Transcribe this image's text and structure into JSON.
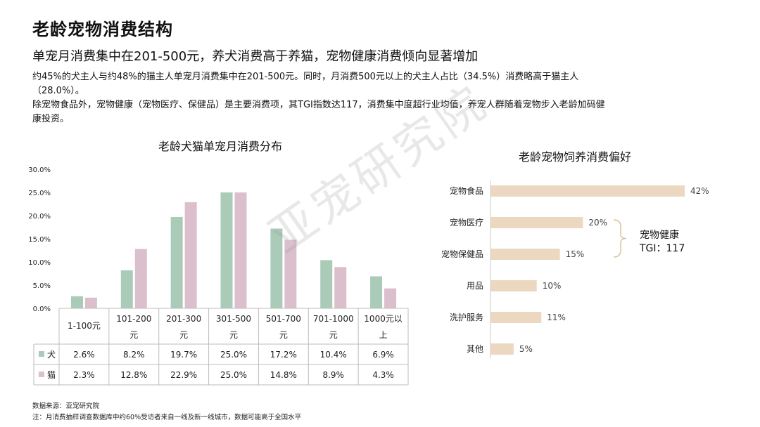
{
  "page": {
    "title": "老龄宠物消费结构",
    "subtitle": "单宠月消费集中在201-500元，养犬消费高于养猫，宠物健康消费倾向显著增加",
    "para1_line1": "约45%的犬主人与约48%的猫主人单宠月消费集中在201-500元。同时，月消费500元以上的犬主人占比（34.5%）消费略高于猫主人",
    "para1_line2": "（28.0%）。",
    "para2_line1": "除宠物食品外，宠物健康（宠物医疗、保健品）是主要消费项，其TGI指数达117，消费集中度超行业均值，养宠人群随着宠物步入老龄加码健",
    "para2_line2": "康投资。",
    "watermark": "亚宠研究院",
    "source": "数据来源：亚宠研究院",
    "note": "注：月消费抽样调查数据库中约60%受访者来自一线及新一线城市，数据可能高于全国水平"
  },
  "chart_data": [
    {
      "type": "bar",
      "title": "老龄犬猫单宠月消费分布",
      "categories": [
        [
          "1-100元"
        ],
        [
          "101-200",
          "元"
        ],
        [
          "201-300",
          "元"
        ],
        [
          "301-500",
          "元"
        ],
        [
          "501-700",
          "元"
        ],
        [
          "701-1000",
          "元"
        ],
        [
          "1000元以",
          "上"
        ]
      ],
      "series": [
        {
          "name": "犬",
          "color": "#a9cbb8",
          "values": [
            2.6,
            8.2,
            19.7,
            25.0,
            17.2,
            10.4,
            6.9
          ],
          "labels": [
            "2.6%",
            "8.2%",
            "19.7%",
            "25.0%",
            "17.2%",
            "10.4%",
            "6.9%"
          ]
        },
        {
          "name": "猫",
          "color": "#dcbfcd",
          "values": [
            2.3,
            12.8,
            22.9,
            25.0,
            14.8,
            8.9,
            4.3
          ],
          "labels": [
            "2.3%",
            "12.8%",
            "22.9%",
            "25.0%",
            "14.8%",
            "8.9%",
            "4.3%"
          ]
        }
      ],
      "ylim": [
        0,
        30
      ],
      "yticks": [
        "0.0%",
        "5.0%",
        "10.0%",
        "15.0%",
        "20.0%",
        "25.0%",
        "30.0%"
      ],
      "legend": "data-table"
    },
    {
      "type": "bar",
      "orientation": "horizontal",
      "title": "老龄宠物饲养消费偏好",
      "categories": [
        "宠物食品",
        "宠物医疗",
        "宠物保健品",
        "用品",
        "洗护服务",
        "其他"
      ],
      "values": [
        42,
        20,
        15,
        10,
        11,
        5
      ],
      "labels": [
        "42%",
        "20%",
        "15%",
        "10%",
        "11%",
        "5%"
      ],
      "color": "#ecd7c0",
      "xlim": [
        0,
        42
      ],
      "annotation_line1": "宠物健康",
      "annotation_line2": "TGI：117"
    }
  ]
}
